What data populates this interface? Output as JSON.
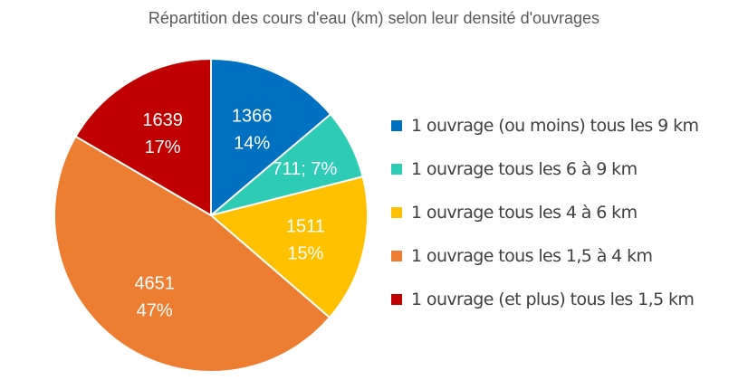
{
  "chart_data": {
    "type": "pie",
    "title": "Répartition des cours d'eau (km) selon leur densité d'ouvrages",
    "legend_position": "right",
    "slices": [
      {
        "label": "1 ouvrage (ou moins) tous les 9 km",
        "value": 1366,
        "percent_label": "14%",
        "color": "#0070C0",
        "display": "two-line"
      },
      {
        "label": "1 ouvrage tous les 6 à 9 km",
        "value": 711,
        "percent_label": "7%",
        "color": "#2ECBB5",
        "display": "one-line"
      },
      {
        "label": "1 ouvrage tous les 4 à 6 km",
        "value": 1511,
        "percent_label": "15%",
        "color": "#FFC000",
        "display": "two-line"
      },
      {
        "label": "1 ouvrage tous les 1,5 à 4 km",
        "value": 4651,
        "percent_label": "47%",
        "color": "#ED7D31",
        "display": "two-line"
      },
      {
        "label": "1 ouvrage (et plus) tous les 1,5 km",
        "value": 1639,
        "percent_label": "17%",
        "color": "#C00000",
        "display": "two-line"
      }
    ]
  }
}
